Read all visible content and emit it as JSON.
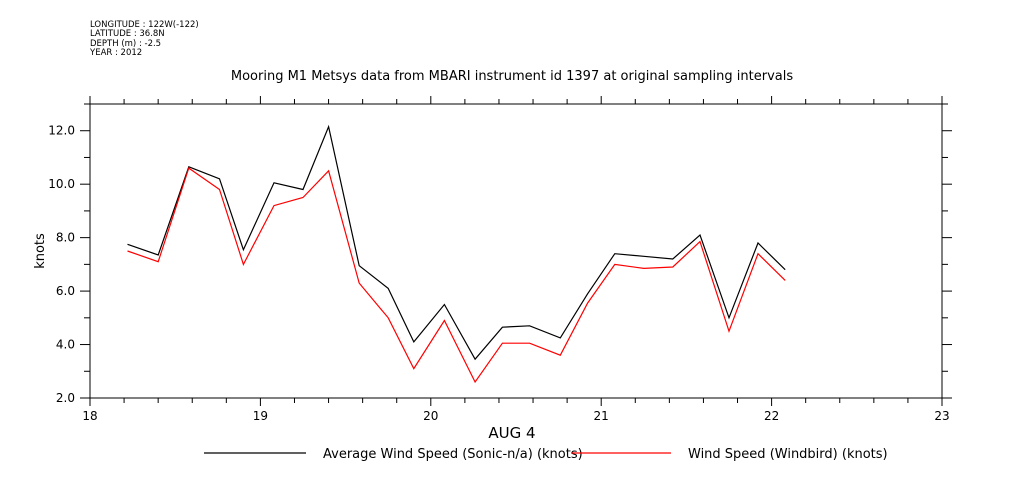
{
  "header": {
    "lines": [
      "LONGITUDE : 122W(-122)",
      "LATITUDE : 36.8N",
      "DEPTH (m) : -2.5",
      "YEAR : 2012"
    ]
  },
  "chart_data": {
    "type": "line",
    "title": "Mooring M1 Metsys data from MBARI instrument id 1397 at original sampling intervals",
    "xlabel": "AUG 4",
    "ylabel": "knots",
    "xlim": [
      18,
      23
    ],
    "ylim": [
      2.0,
      13.0
    ],
    "x_ticks": [
      "18",
      "19",
      "20",
      "21",
      "22",
      "23"
    ],
    "y_ticks": [
      "2.0",
      "4.0",
      "6.0",
      "8.0",
      "10.0",
      "12.0"
    ],
    "x_tick_values": [
      18,
      19,
      20,
      21,
      22,
      23
    ],
    "y_tick_values": [
      2,
      4,
      6,
      8,
      10,
      12
    ],
    "legend_position": "bottom",
    "grid": false,
    "x": [
      18.22,
      18.4,
      18.58,
      18.76,
      18.9,
      19.08,
      19.25,
      19.4,
      19.58,
      19.75,
      19.9,
      20.08,
      20.26,
      20.42,
      20.58,
      20.76,
      20.92,
      21.08,
      21.25,
      21.42,
      21.58,
      21.75,
      21.92,
      22.08
    ],
    "series": [
      {
        "name": "Average Wind Speed (Sonic-n/a) (knots)",
        "color": "#000000",
        "values": [
          7.75,
          7.35,
          10.65,
          10.2,
          7.55,
          10.05,
          9.8,
          12.15,
          6.95,
          6.1,
          4.1,
          5.5,
          3.45,
          4.65,
          4.7,
          4.25,
          5.9,
          7.4,
          7.3,
          7.2,
          8.1,
          5.0,
          7.8,
          6.8
        ]
      },
      {
        "name": "Wind Speed (Windbird) (knots)",
        "color": "#ff0000",
        "values": [
          7.5,
          7.1,
          10.6,
          9.8,
          7.0,
          9.2,
          9.5,
          10.5,
          6.3,
          5.0,
          3.1,
          4.9,
          2.6,
          4.05,
          4.05,
          3.6,
          5.55,
          7.0,
          6.85,
          6.9,
          7.85,
          4.5,
          7.4,
          6.4
        ]
      }
    ]
  }
}
